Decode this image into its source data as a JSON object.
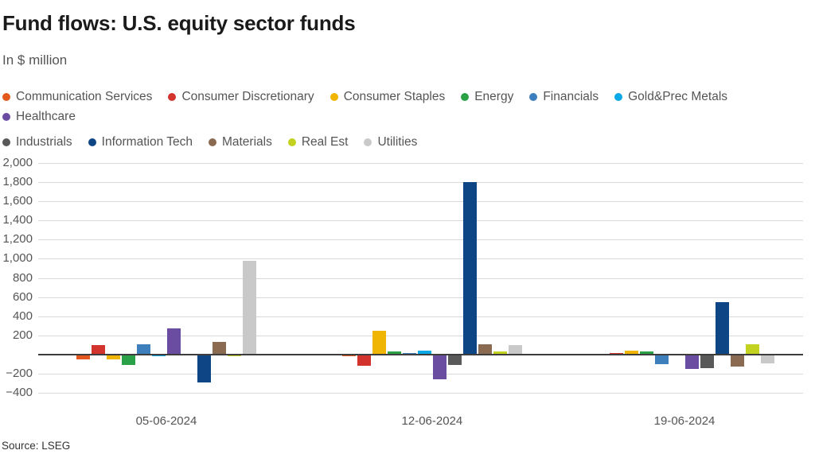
{
  "chart_data": {
    "type": "bar",
    "title": "Fund flows: U.S. equity sector funds",
    "subtitle": "In $ million",
    "source": "Source: LSEG",
    "categories": [
      "05-06-2024",
      "12-06-2024",
      "19-06-2024"
    ],
    "series": [
      {
        "name": "Communication Services",
        "color": "#e2581d",
        "values": [
          -50,
          -15,
          0
        ]
      },
      {
        "name": "Consumer Discretionary",
        "color": "#d2332c",
        "values": [
          95,
          -120,
          10
        ]
      },
      {
        "name": "Consumer Staples",
        "color": "#f0b502",
        "values": [
          -50,
          250,
          40
        ]
      },
      {
        "name": "Energy",
        "color": "#2aa147",
        "values": [
          -110,
          30,
          30
        ]
      },
      {
        "name": "Financials",
        "color": "#3d7ebc",
        "values": [
          110,
          15,
          -100
        ]
      },
      {
        "name": "Gold&Prec Metals",
        "color": "#09a8e6",
        "values": [
          -20,
          40,
          0
        ]
      },
      {
        "name": "Healthcare",
        "color": "#6a4da0",
        "values": [
          270,
          -260,
          -150
        ]
      },
      {
        "name": "Industrials",
        "color": "#595959",
        "values": [
          0,
          -110,
          -140
        ]
      },
      {
        "name": "Information Tech",
        "color": "#0d4585",
        "values": [
          -290,
          1800,
          550
        ]
      },
      {
        "name": "Materials",
        "color": "#8a6a50",
        "values": [
          135,
          105,
          -130
        ]
      },
      {
        "name": "Real Est",
        "color": "#c2d21f",
        "values": [
          -15,
          30,
          110
        ]
      },
      {
        "name": "Utilities",
        "color": "#c9c9c9",
        "values": [
          980,
          100,
          -95
        ]
      }
    ],
    "ylim": [
      -400,
      2000
    ],
    "ytick_step": 200,
    "yticks": [
      {
        "v": 2000,
        "label": "2,000"
      },
      {
        "v": 1800,
        "label": "1,800"
      },
      {
        "v": 1600,
        "label": "1,600"
      },
      {
        "v": 1400,
        "label": "1,400"
      },
      {
        "v": 1200,
        "label": "1,200"
      },
      {
        "v": 1000,
        "label": "1,000"
      },
      {
        "v": 800,
        "label": "800"
      },
      {
        "v": 600,
        "label": "600"
      },
      {
        "v": 400,
        "label": "400"
      },
      {
        "v": 200,
        "label": "200"
      },
      {
        "v": 0,
        "label": ""
      },
      {
        "v": -200,
        "label": "−200"
      },
      {
        "v": -400,
        "label": "−400"
      }
    ],
    "grid": true,
    "legend_position": "top",
    "legend_rows": [
      7,
      5
    ]
  }
}
